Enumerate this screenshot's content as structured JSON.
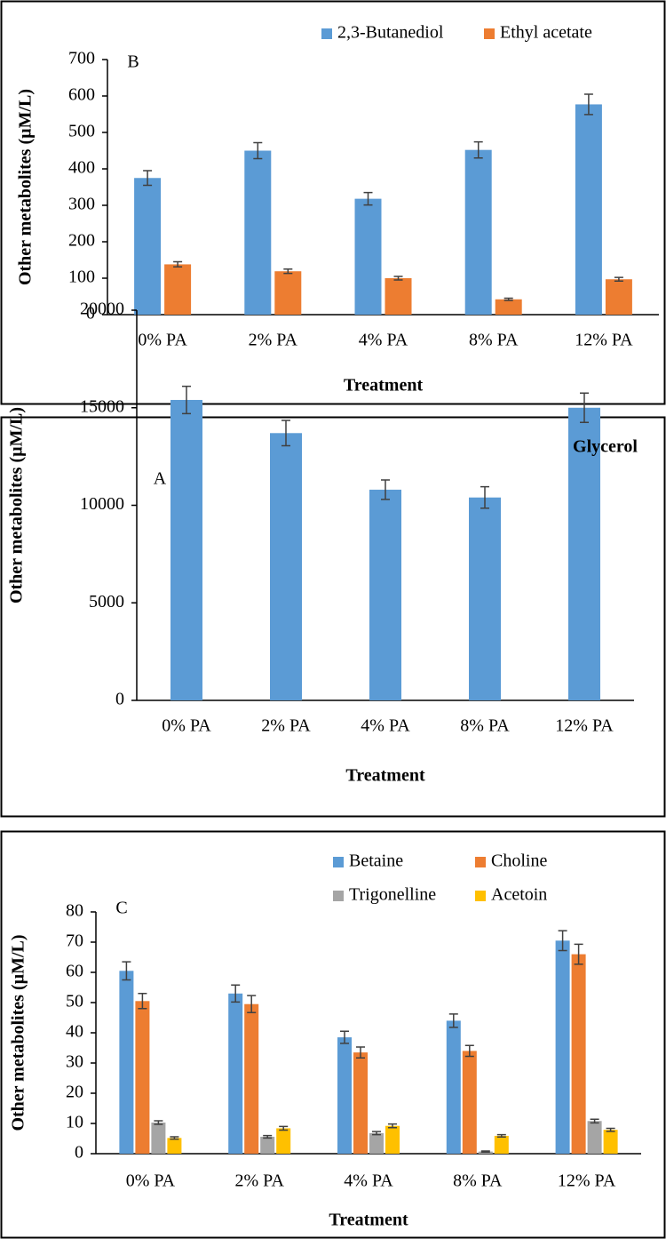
{
  "chart_data": [
    {
      "type": "bar",
      "annotation": "B",
      "ylabel": "Other metabolites (µM/L)",
      "xlabel": "Treatment",
      "categories": [
        "0% PA",
        "2% PA",
        "4% PA",
        "8% PA",
        "12% PA"
      ],
      "series": [
        {
          "name": "2,3-Butanediol",
          "color": "#5b9bd5",
          "values": [
            375,
            450,
            318,
            452,
            577
          ],
          "errors": [
            20,
            22,
            17,
            22,
            28
          ]
        },
        {
          "name": "Ethyl acetate",
          "color": "#ed7d31",
          "values": [
            138,
            119,
            100,
            42,
            97
          ],
          "errors": [
            7,
            6,
            5,
            3,
            5
          ]
        }
      ],
      "ylim": [
        0,
        700
      ],
      "yticks": [
        0,
        100,
        200,
        300,
        400,
        500,
        600,
        700
      ],
      "grid": false,
      "legend": "top-right"
    },
    {
      "type": "bar",
      "title": "Glycerol",
      "annotation": "A",
      "ylabel": "Other metabolites (µM/L)",
      "xlabel": "Treatment",
      "categories": [
        "0% PA",
        "2% PA",
        "4% PA",
        "8% PA",
        "12% PA"
      ],
      "series": [
        {
          "color": "#5b9bd5",
          "values": [
            15400,
            13700,
            10800,
            10400,
            15000
          ],
          "errors": [
            700,
            650,
            500,
            550,
            750
          ]
        }
      ],
      "ylim": [
        0,
        20000
      ],
      "yticks": [
        0,
        5000,
        10000,
        15000,
        20000
      ],
      "grid": false
    },
    {
      "type": "bar",
      "annotation": "C",
      "ylabel": "Other metabolites (µM/L)",
      "xlabel": "Treatment",
      "categories": [
        "0% PA",
        "2% PA",
        "4% PA",
        "8% PA",
        "12% PA"
      ],
      "series": [
        {
          "name": "Betaine",
          "color": "#5b9bd5",
          "values": [
            60.5,
            53,
            38.5,
            44,
            70.5
          ],
          "errors": [
            3,
            2.8,
            2,
            2.2,
            3.3
          ]
        },
        {
          "name": "Choline",
          "color": "#ed7d31",
          "values": [
            50.5,
            49.5,
            33.5,
            34,
            66
          ],
          "errors": [
            2.5,
            2.8,
            1.8,
            1.8,
            3.3
          ]
        },
        {
          "name": "Trigonelline",
          "color": "#a5a5a5",
          "values": [
            10.3,
            5.6,
            6.8,
            0.7,
            10.8
          ],
          "errors": [
            0.6,
            0.4,
            0.5,
            0.2,
            0.6
          ]
        },
        {
          "name": "Acetoin",
          "color": "#ffc000",
          "values": [
            5.2,
            8.4,
            9.2,
            5.9,
            7.9
          ],
          "errors": [
            0.4,
            0.6,
            0.6,
            0.4,
            0.5
          ]
        }
      ],
      "ylim": [
        0,
        80
      ],
      "yticks": [
        0,
        10,
        20,
        30,
        40,
        50,
        60,
        70,
        80
      ],
      "grid": false,
      "legend": "top-right"
    }
  ]
}
